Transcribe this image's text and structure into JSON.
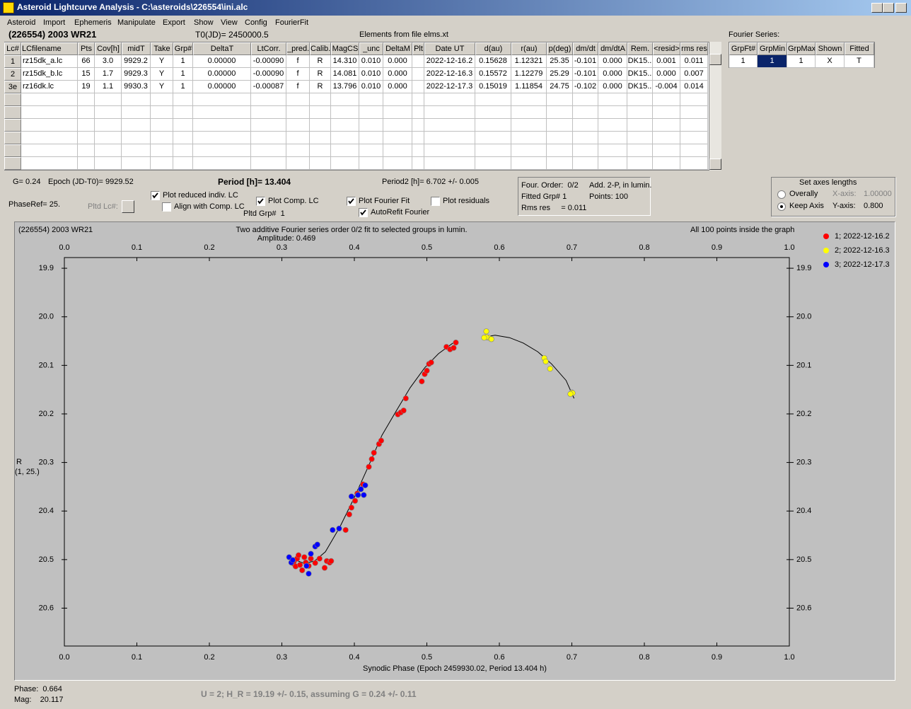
{
  "window": {
    "title": "Asteroid Lightcurve Analysis - C:\\asteroids\\226554\\ini.alc"
  },
  "menu": [
    "Asteroid",
    "Import",
    "Ephemeris",
    "Manipulate",
    "Export",
    "Show",
    "View",
    "Config",
    "FourierFit"
  ],
  "header": {
    "object": "(226554) 2003 WR21",
    "t0": "T0(JD)= 2450000.5",
    "elements": "Elements from file elms.xt"
  },
  "lc_table": {
    "columns": [
      "Lc#",
      "LCfilename",
      "Pts",
      "Cov[h]",
      "midT",
      "Take",
      "Grp#",
      "DeltaT",
      "LtCorr.",
      "_pred.",
      "Calib.",
      "MagCS",
      "_unc",
      "DeltaM",
      "Plt",
      "Date UT",
      "d(au)",
      "r(au)",
      "p(deg)",
      "dm/dt",
      "dm/dtA",
      "Rem.",
      "<resid>",
      "rms res"
    ],
    "rows": [
      [
        "1",
        "rz15dk_a.lc",
        "66",
        "3.0",
        "9929.2",
        "Y",
        "1",
        "0.00000",
        "-0.00090",
        "f",
        "R",
        "14.310",
        "0.010",
        "0.000",
        null,
        "2022-12-16.2",
        "0.15628",
        "1.12321",
        "25.35",
        "-0.101",
        "0.000",
        "DK15..",
        "0.001",
        "0.011"
      ],
      [
        "2",
        "rz15dk_b.lc",
        "15",
        "1.7",
        "9929.3",
        "Y",
        "1",
        "0.00000",
        "-0.00090",
        "f",
        "R",
        "14.081",
        "0.010",
        "0.000",
        null,
        "2022-12-16.3",
        "0.15572",
        "1.12279",
        "25.29",
        "-0.101",
        "0.000",
        "DK15..",
        "0.000",
        "0.007"
      ],
      [
        "3e",
        "rz16dk.lc",
        "19",
        "1.1",
        "9930.3",
        "Y",
        "1",
        "0.00000",
        "-0.00087",
        "f",
        "R",
        "13.796",
        "0.010",
        "0.000",
        null,
        "2022-12-17.3",
        "0.15019",
        "1.11854",
        "24.75",
        "-0.102",
        "0.000",
        "DK15..",
        "-0.004",
        "0.014"
      ]
    ]
  },
  "fourier": {
    "label": "Fourier Series:",
    "columns": [
      "GrpFt#",
      "GrpMin",
      "GrpMax",
      "Shown",
      "Fitted"
    ],
    "rows": [
      [
        "1",
        "1",
        "1",
        "X",
        "T"
      ]
    ]
  },
  "info": {
    "g": "G= 0.24",
    "epoch": "Epoch (JD-T0)= 9929.52",
    "period": "Period [h]= 13.404",
    "period2": "Period2 [h]= 6.702 +/- 0.005",
    "phaseref": "PhaseRef= 25.",
    "pltd_lc": "Pltd Lc#:",
    "pltd_grp": "Pltd Grp#  1"
  },
  "checkboxes": [
    {
      "label": "Plot reduced indiv. LC",
      "checked": true
    },
    {
      "label": "Align with Comp. LC",
      "checked": false
    },
    {
      "label": "Plot Comp. LC",
      "checked": true
    },
    {
      "label": "Plot Fourier Fit",
      "checked": true
    },
    {
      "label": "AutoRefit Fourier",
      "checked": true
    },
    {
      "label": "Plot residuals",
      "checked": false
    }
  ],
  "fit_box": [
    "Four. Order:  0/2",
    "Add. 2-P, in lumin.",
    "Fitted Grp# 1",
    "Points: 100",
    "Rms res     = 0.011"
  ],
  "axes_box": {
    "title": "Set axes lengths",
    "options": [
      {
        "label": "Overally",
        "selected": false,
        "axis": "X-axis:",
        "value": "1.00000"
      },
      {
        "label": "Keep Axis",
        "selected": true,
        "axis": "Y-axis:",
        "value": "0.800"
      }
    ]
  },
  "chart_data": {
    "type": "scatter",
    "object_label": "(226554) 2003 WR21",
    "title": "Two additive Fourier series order 0/2 fit to selected groups in lumin.",
    "subtitle": "Amplitude: 0.469",
    "note": "All 100 points inside the graph",
    "xlabel": "Synodic Phase (Epoch 2459930.02, Period 13.404 h)",
    "ylabel": "R",
    "ylabel2": "(1, 25.)",
    "xlim": [
      0,
      1
    ],
    "ylim": [
      19.878,
      20.678
    ],
    "y_inverted": true,
    "xticks": [
      {
        "value": 0,
        "label": "0.0"
      },
      0.1,
      0.2,
      0.3,
      0.4,
      0.5,
      0.6,
      0.7,
      0.8,
      0.9,
      {
        "value": 1,
        "label": "1.0"
      }
    ],
    "yticks": [
      19.9,
      {
        "value": 20,
        "label": "20.0"
      },
      20.1,
      20.2,
      20.3,
      20.4,
      20.5,
      20.6
    ],
    "series": [
      {
        "name": "1; 2022-12-16.2",
        "color": "#ff0000",
        "x": [
          0.317,
          0.316,
          0.319,
          0.321,
          0.323,
          0.325,
          0.328,
          0.331,
          0.333,
          0.337,
          0.34,
          0.346,
          0.352,
          0.359,
          0.362,
          0.366,
          0.368,
          0.388,
          0.393,
          0.396,
          0.401,
          0.404,
          0.412,
          0.42,
          0.424,
          0.427,
          0.434,
          0.437,
          0.46,
          0.464,
          0.468,
          0.471,
          0.493,
          0.497,
          0.5,
          0.503,
          0.506,
          0.527,
          0.532,
          0.537,
          0.54
        ],
        "values": [
          20.503,
          20.508,
          20.514,
          20.498,
          20.491,
          20.511,
          20.522,
          20.495,
          20.506,
          20.513,
          20.498,
          20.507,
          20.498,
          20.517,
          20.503,
          20.506,
          20.503,
          20.439,
          20.407,
          20.393,
          20.379,
          20.364,
          20.345,
          20.309,
          20.293,
          20.28,
          20.262,
          20.255,
          20.201,
          20.197,
          20.193,
          20.168,
          20.133,
          20.118,
          20.111,
          20.097,
          20.094,
          20.062,
          20.067,
          20.064,
          20.053
        ]
      },
      {
        "name": "2; 2022-12-16.3",
        "color": "#ffff00",
        "x": [
          0.582,
          0.585,
          0.589,
          0.582,
          0.579,
          0.662,
          0.664,
          0.67,
          0.7,
          0.701,
          0.698
        ],
        "values": [
          20.03,
          20.043,
          20.046,
          20.042,
          20.043,
          20.085,
          20.092,
          20.107,
          20.156,
          20.157,
          20.159
        ]
      },
      {
        "name": "3; 2022-12-17.3",
        "color": "#0000ff",
        "x": [
          0.31,
          0.313,
          0.315,
          0.334,
          0.337,
          0.34,
          0.346,
          0.349,
          0.37,
          0.379,
          0.396,
          0.405,
          0.409,
          0.413,
          0.415
        ],
        "values": [
          20.495,
          20.506,
          20.501,
          20.513,
          20.529,
          20.488,
          20.473,
          20.469,
          20.439,
          20.436,
          20.37,
          20.367,
          20.355,
          20.367,
          20.347
        ]
      }
    ],
    "fit": {
      "color": "#000000",
      "x": [
        0.319,
        0.331,
        0.345,
        0.36,
        0.38,
        0.399,
        0.419,
        0.438,
        0.458,
        0.477,
        0.497,
        0.516,
        0.536,
        null,
        0.582,
        0.594,
        0.614,
        0.633,
        0.653,
        0.672,
        0.692,
        0.703
      ],
      "values": [
        20.501,
        20.508,
        20.503,
        20.484,
        20.433,
        20.375,
        20.309,
        20.244,
        20.193,
        20.146,
        20.105,
        20.076,
        20.054,
        null,
        20.041,
        20.038,
        20.043,
        20.054,
        20.072,
        20.097,
        20.131,
        20.168
      ]
    }
  },
  "status": {
    "phase": "Phase:  0.664",
    "mag": "Mag:    20.117",
    "result": "U = 2; H_R = 19.19 +/- 0.15, assuming G = 0.24 +/- 0.11"
  }
}
